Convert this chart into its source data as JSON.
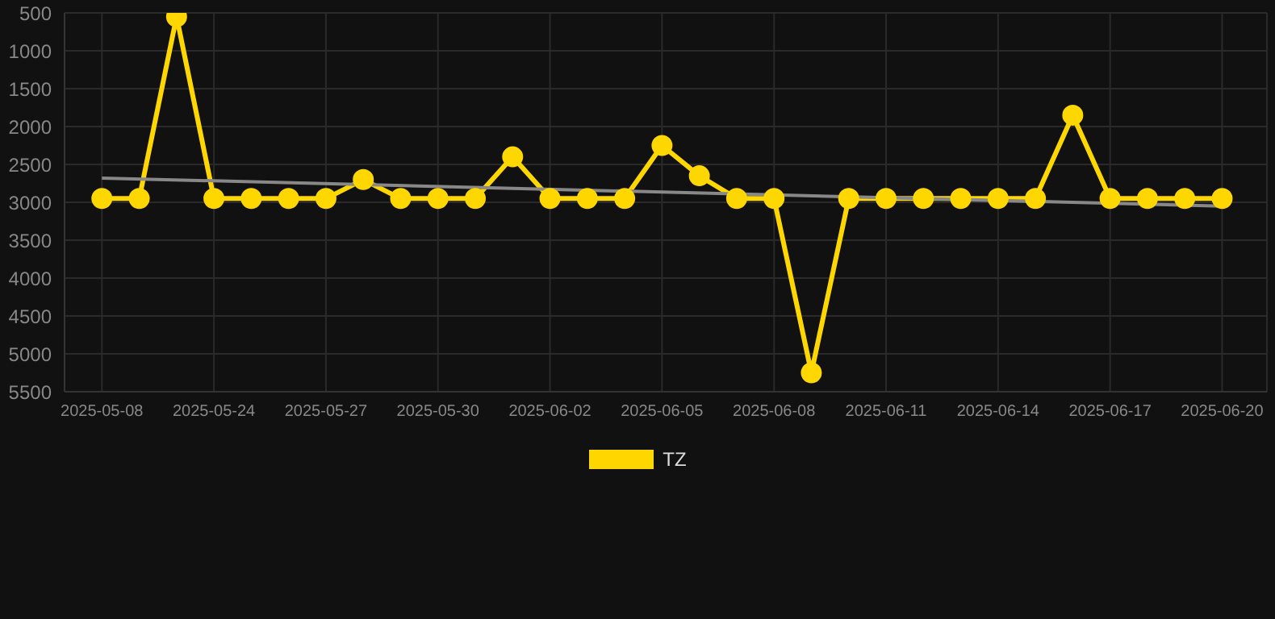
{
  "chart_data": {
    "type": "line",
    "categories": [
      "2025-05-08",
      null,
      null,
      "2025-05-24",
      null,
      null,
      "2025-05-27",
      null,
      null,
      "2025-05-30",
      null,
      null,
      "2025-06-02",
      null,
      null,
      "2025-06-05",
      null,
      null,
      "2025-06-08",
      null,
      null,
      "2025-06-11",
      null,
      null,
      "2025-06-14",
      null,
      null,
      "2025-06-17",
      null,
      null,
      "2025-06-20"
    ],
    "series": [
      {
        "name": "TZ",
        "color": "#ffd700",
        "values": [
          2950,
          2950,
          550,
          2950,
          2950,
          2950,
          2950,
          2700,
          2950,
          2950,
          2950,
          2400,
          2950,
          2950,
          2950,
          2250,
          2650,
          2950,
          2950,
          5250,
          2950,
          2950,
          2950,
          2950,
          2950,
          2950,
          1850,
          2950,
          2950,
          2950,
          2950
        ]
      },
      {
        "type": "line",
        "color": "#888888",
        "marker": "none",
        "values": [
          2680,
          null,
          null,
          null,
          null,
          null,
          null,
          null,
          null,
          null,
          null,
          null,
          null,
          null,
          null,
          null,
          null,
          null,
          null,
          null,
          null,
          null,
          null,
          null,
          null,
          null,
          null,
          null,
          null,
          null,
          3050
        ]
      }
    ],
    "ylim": [
      5500,
      500
    ],
    "yticks": [
      500,
      1000,
      1500,
      2000,
      2500,
      3000,
      3500,
      4000,
      4500,
      5000,
      5500
    ],
    "grid": true,
    "legend": "bottom",
    "marker": "circle",
    "line_style": "solid"
  }
}
